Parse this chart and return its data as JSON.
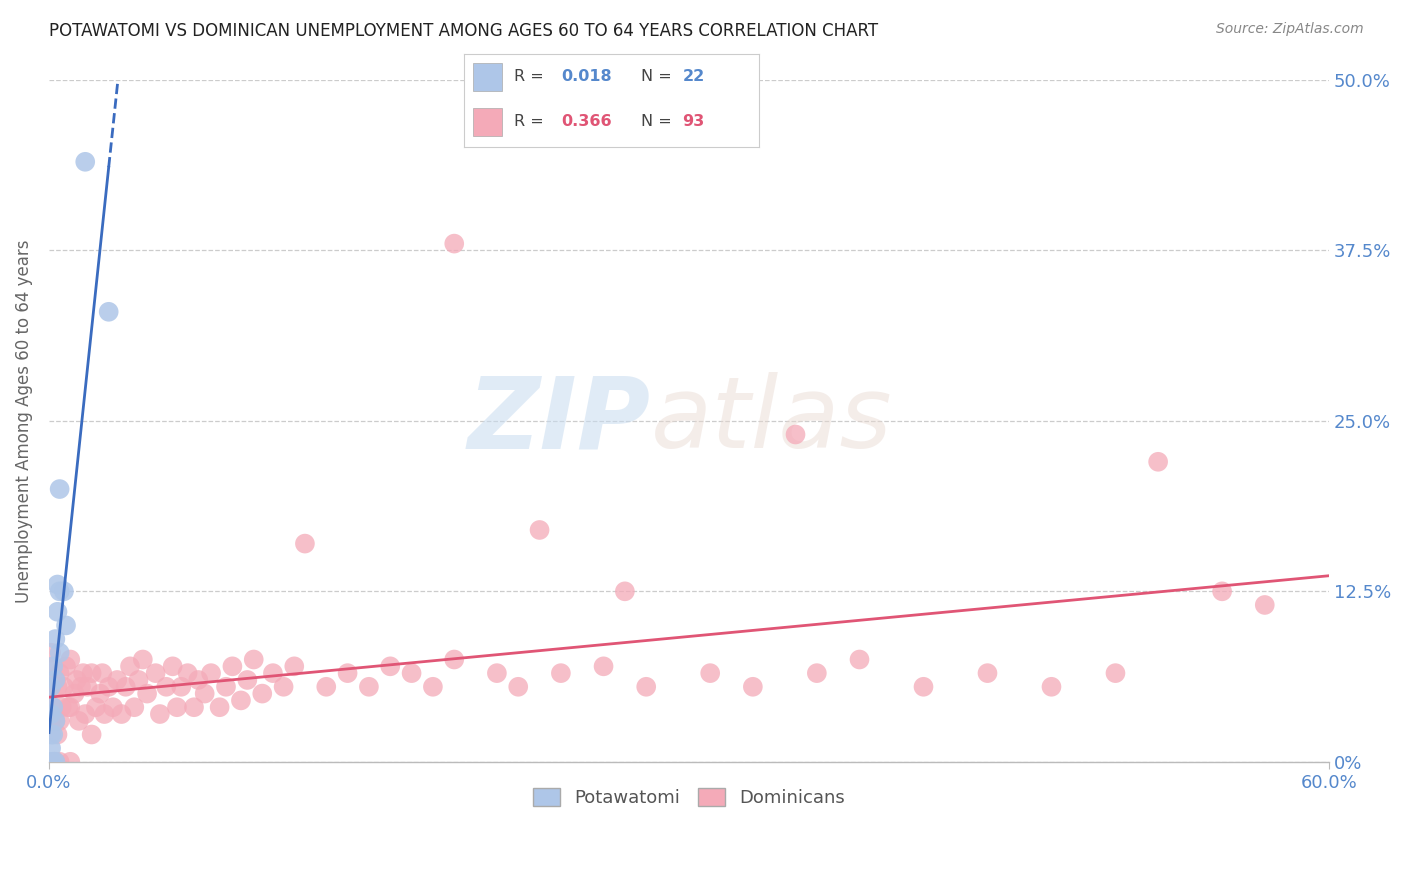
{
  "title": "POTAWATOMI VS DOMINICAN UNEMPLOYMENT AMONG AGES 60 TO 64 YEARS CORRELATION CHART",
  "source": "Source: ZipAtlas.com",
  "ylabel": "Unemployment Among Ages 60 to 64 years",
  "xlim": [
    0.0,
    0.6
  ],
  "ylim": [
    0.0,
    0.5
  ],
  "xtick_positions": [
    0.0,
    0.6
  ],
  "xtick_labels": [
    "0.0%",
    "60.0%"
  ],
  "yticks": [
    0.0,
    0.125,
    0.25,
    0.375,
    0.5
  ],
  "ytick_labels_right": [
    "0%",
    "12.5%",
    "25.0%",
    "37.5%",
    "50.0%"
  ],
  "blue_R": "0.018",
  "blue_N": "22",
  "pink_R": "0.366",
  "pink_N": "93",
  "blue_color": "#aec6e8",
  "pink_color": "#f4aab8",
  "blue_line_color": "#3a6bbf",
  "pink_line_color": "#e05575",
  "axis_label_color": "#5588cc",
  "right_label_color": "#5588cc",
  "legend_R_color": "#5588cc",
  "legend_pink_R_color": "#e05575",
  "title_color": "#222222",
  "source_color": "#888888",
  "background_color": "#ffffff",
  "grid_color": "#cccccc",
  "potawatomi_x": [
    0.001,
    0.001,
    0.001,
    0.001,
    0.001,
    0.002,
    0.002,
    0.002,
    0.002,
    0.003,
    0.003,
    0.003,
    0.003,
    0.004,
    0.004,
    0.005,
    0.005,
    0.007,
    0.008,
    0.017,
    0.028,
    0.005
  ],
  "potawatomi_y": [
    0.0,
    0.01,
    0.02,
    0.035,
    0.055,
    0.0,
    0.02,
    0.04,
    0.07,
    0.0,
    0.03,
    0.06,
    0.09,
    0.11,
    0.13,
    0.08,
    0.125,
    0.125,
    0.1,
    0.44,
    0.33,
    0.2
  ],
  "dominican_x": [
    0.001,
    0.001,
    0.001,
    0.002,
    0.002,
    0.002,
    0.003,
    0.003,
    0.003,
    0.004,
    0.004,
    0.005,
    0.005,
    0.005,
    0.006,
    0.007,
    0.008,
    0.009,
    0.01,
    0.01,
    0.01,
    0.012,
    0.013,
    0.014,
    0.015,
    0.016,
    0.017,
    0.018,
    0.02,
    0.02,
    0.022,
    0.024,
    0.025,
    0.026,
    0.028,
    0.03,
    0.032,
    0.034,
    0.036,
    0.038,
    0.04,
    0.042,
    0.044,
    0.046,
    0.05,
    0.052,
    0.055,
    0.058,
    0.06,
    0.062,
    0.065,
    0.068,
    0.07,
    0.073,
    0.076,
    0.08,
    0.083,
    0.086,
    0.09,
    0.093,
    0.096,
    0.1,
    0.105,
    0.11,
    0.115,
    0.12,
    0.13,
    0.14,
    0.15,
    0.16,
    0.17,
    0.18,
    0.19,
    0.21,
    0.22,
    0.24,
    0.26,
    0.28,
    0.31,
    0.33,
    0.36,
    0.38,
    0.41,
    0.44,
    0.47,
    0.5,
    0.52,
    0.55,
    0.57,
    0.35,
    0.27,
    0.23,
    0.19
  ],
  "dominican_y": [
    0.03,
    0.055,
    0.08,
    0.0,
    0.04,
    0.07,
    0.0,
    0.03,
    0.06,
    0.02,
    0.055,
    0.0,
    0.03,
    0.065,
    0.04,
    0.055,
    0.07,
    0.04,
    0.0,
    0.04,
    0.075,
    0.05,
    0.06,
    0.03,
    0.055,
    0.065,
    0.035,
    0.055,
    0.02,
    0.065,
    0.04,
    0.05,
    0.065,
    0.035,
    0.055,
    0.04,
    0.06,
    0.035,
    0.055,
    0.07,
    0.04,
    0.06,
    0.075,
    0.05,
    0.065,
    0.035,
    0.055,
    0.07,
    0.04,
    0.055,
    0.065,
    0.04,
    0.06,
    0.05,
    0.065,
    0.04,
    0.055,
    0.07,
    0.045,
    0.06,
    0.075,
    0.05,
    0.065,
    0.055,
    0.07,
    0.16,
    0.055,
    0.065,
    0.055,
    0.07,
    0.065,
    0.055,
    0.075,
    0.065,
    0.055,
    0.065,
    0.07,
    0.055,
    0.065,
    0.055,
    0.065,
    0.075,
    0.055,
    0.065,
    0.055,
    0.065,
    0.22,
    0.125,
    0.115,
    0.24,
    0.125,
    0.17,
    0.38
  ]
}
